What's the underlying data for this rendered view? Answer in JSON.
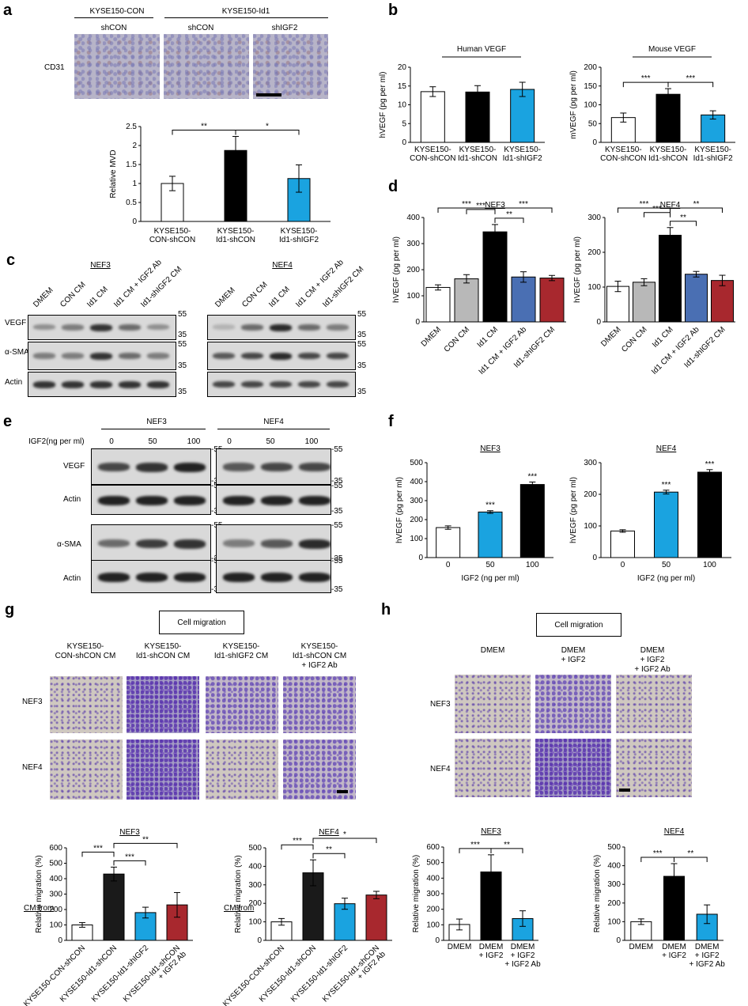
{
  "panels": {
    "a": {
      "letter": "a",
      "group1": "KYSE150-CON",
      "group2": "KYSE150-Id1",
      "sub": [
        "shCON",
        "shCON",
        "shIGF2"
      ],
      "row_label": "CD31"
    },
    "b": {
      "letter": "b",
      "title1": "Human VEGF",
      "title2": "Mouse VEGF"
    },
    "c": {
      "letter": "c",
      "title1": "NEF3",
      "title2": "NEF4",
      "lanes": [
        "DMEM",
        "CON CM",
        "Id1 CM",
        "Id1 CM + IGF2 Ab",
        "Id1-shIGF2 CM"
      ],
      "rows": [
        "VEGF",
        "α-SMA",
        "Actin"
      ],
      "markers": [
        "55",
        "35",
        "55",
        "35",
        "35"
      ]
    },
    "d": {
      "letter": "d"
    },
    "e": {
      "letter": "e",
      "title1": "NEF3",
      "title2": "NEF4",
      "dose_label": "IGF2(ng per ml)",
      "doses": [
        "0",
        "50",
        "100"
      ],
      "rows": [
        "VEGF",
        "Actin",
        "α-SMA",
        "Actin"
      ],
      "markers": [
        "55",
        "35"
      ]
    },
    "f": {
      "letter": "f"
    },
    "g": {
      "letter": "g",
      "box": "Cell migration",
      "cols": [
        "KYSE150-\nCON-shCON CM",
        "KYSE150-\nId1-shCON CM",
        "KYSE150-\nId1-shIGF2 CM",
        "KYSE150-\nId1-shCON CM\n+ IGF2 Ab"
      ],
      "rows": [
        "NEF3",
        "NEF4"
      ],
      "cm_from": "CM from"
    },
    "h": {
      "letter": "h",
      "box": "Cell migration",
      "cols": [
        "DMEM",
        "DMEM\n+ IGF2",
        "DMEM\n+ IGF2\n+ IGF2 Ab"
      ],
      "rows": [
        "NEF3",
        "NEF4"
      ]
    }
  },
  "chart_data": [
    {
      "id": "a_mvd",
      "type": "bar",
      "title": "",
      "ylabel": "Relative MVD",
      "categories": [
        "KYSE150-\nCON-shCON",
        "KYSE150-\nId1-shCON",
        "KYSE150-\nId1-shIGF2"
      ],
      "values": [
        1.0,
        1.87,
        1.13
      ],
      "errors": [
        0.19,
        0.37,
        0.36
      ],
      "colors": [
        "#ffffff",
        "#000000",
        "#1aa3e0"
      ],
      "ylim": [
        0,
        2.5
      ],
      "yticks": [
        "0",
        "0.5",
        "1",
        "1.5",
        "2",
        "2.5"
      ],
      "sig": [
        {
          "from": 0,
          "to": 1,
          "label": "**",
          "level": 1
        },
        {
          "from": 1,
          "to": 2,
          "label": "*",
          "level": 1
        }
      ],
      "rotate_labels": false
    },
    {
      "id": "b_human",
      "type": "bar",
      "title": "Human VEGF",
      "ylabel": "hVEGF (pg per ml)",
      "categories": [
        "KYSE150-\nCON-shCON",
        "KYSE150-\nId1-shCON",
        "KYSE150-\nId1-shIGF2"
      ],
      "values": [
        13.5,
        13.4,
        14.1
      ],
      "errors": [
        1.3,
        1.7,
        1.9
      ],
      "colors": [
        "#ffffff",
        "#000000",
        "#1aa3e0"
      ],
      "ylim": [
        0,
        20
      ],
      "yticks": [
        "0",
        "5",
        "10",
        "15",
        "20"
      ],
      "sig": [],
      "rotate_labels": false
    },
    {
      "id": "b_mouse",
      "type": "bar",
      "title": "Mouse VEGF",
      "ylabel": "mVEGF (pg per ml)",
      "categories": [
        "KYSE150-\nCON-shCON",
        "KYSE150-\nId1-shCON",
        "KYSE150-\nId1-shIGF2"
      ],
      "values": [
        66,
        128,
        73
      ],
      "errors": [
        12,
        15,
        11
      ],
      "colors": [
        "#ffffff",
        "#000000",
        "#1aa3e0"
      ],
      "ylim": [
        0,
        200
      ],
      "yticks": [
        "0",
        "50",
        "100",
        "150",
        "200"
      ],
      "sig": [
        {
          "from": 0,
          "to": 1,
          "label": "***",
          "level": 1
        },
        {
          "from": 1,
          "to": 2,
          "label": "***",
          "level": 1
        }
      ],
      "rotate_labels": false
    },
    {
      "id": "d_nef3",
      "type": "bar",
      "title": "NEF3",
      "ylabel": "hVEGF (pg per ml)",
      "categories": [
        "DMEM",
        "CON CM",
        "Id1 CM",
        "Id1 CM + IGF2 Ab",
        "Id1-shIGF2 CM"
      ],
      "values": [
        132,
        165,
        345,
        172,
        168
      ],
      "errors": [
        10,
        16,
        28,
        20,
        10
      ],
      "colors": [
        "#ffffff",
        "#b8b8b8",
        "#000000",
        "#4a6fb3",
        "#a8282e"
      ],
      "ylim": [
        0,
        400
      ],
      "yticks": [
        "0",
        "100",
        "200",
        "300",
        "400"
      ],
      "sig": [
        {
          "from": 0,
          "to": 2,
          "label": "***",
          "level": 3
        },
        {
          "from": 1,
          "to": 2,
          "label": "***",
          "level": 2
        },
        {
          "from": 2,
          "to": 4,
          "label": "***",
          "level": 3
        },
        {
          "from": 2,
          "to": 3,
          "label": "**",
          "level": 1
        }
      ],
      "rotate_labels": true
    },
    {
      "id": "d_nef4",
      "type": "bar",
      "title": "NEF4",
      "ylabel": "hVEGF (pg per ml)",
      "categories": [
        "DMEM",
        "CON CM",
        "Id1 CM",
        "Id1 CM + IGF2 Ab",
        "Id1-shIGF2 CM"
      ],
      "values": [
        102,
        114,
        249,
        137,
        119
      ],
      "errors": [
        15,
        10,
        22,
        8,
        15
      ],
      "colors": [
        "#ffffff",
        "#b8b8b8",
        "#000000",
        "#4a6fb3",
        "#a8282e"
      ],
      "ylim": [
        0,
        300
      ],
      "yticks": [
        "0",
        "100",
        "200",
        "300"
      ],
      "sig": [
        {
          "from": 0,
          "to": 2,
          "label": "***",
          "level": 3
        },
        {
          "from": 1,
          "to": 2,
          "label": "***",
          "level": 2
        },
        {
          "from": 2,
          "to": 4,
          "label": "**",
          "level": 3
        },
        {
          "from": 2,
          "to": 3,
          "label": "**",
          "level": 1
        }
      ],
      "rotate_labels": true
    },
    {
      "id": "f_nef3",
      "type": "bar",
      "title": "NEF3",
      "ylabel": "hVEGF (pg per ml)",
      "xlabel": "IGF2 (ng per ml)",
      "categories": [
        "0",
        "50",
        "100"
      ],
      "values": [
        158,
        240,
        385
      ],
      "errors": [
        9,
        7,
        13
      ],
      "colors": [
        "#ffffff",
        "#1aa3e0",
        "#000000"
      ],
      "ylim": [
        0,
        500
      ],
      "yticks": [
        "0",
        "100",
        "200",
        "300",
        "400",
        "500"
      ],
      "stars": [
        "",
        "***",
        "***"
      ],
      "sig": [],
      "rotate_labels": false
    },
    {
      "id": "f_nef4",
      "type": "bar",
      "title": "NEF4",
      "ylabel": "hVEGF (pg per ml)",
      "xlabel": "IGF2 (ng per ml)",
      "categories": [
        "0",
        "50",
        "100"
      ],
      "values": [
        84,
        207,
        270
      ],
      "errors": [
        4,
        6,
        8
      ],
      "colors": [
        "#ffffff",
        "#1aa3e0",
        "#000000"
      ],
      "ylim": [
        0,
        300
      ],
      "yticks": [
        "0",
        "100",
        "200",
        "300"
      ],
      "stars": [
        "",
        "***",
        "***"
      ],
      "sig": [],
      "rotate_labels": false
    },
    {
      "id": "g_nef3",
      "type": "bar",
      "title": "NEF3",
      "ylabel": "Relative migration (%)",
      "categories": [
        "KYSE150-CON-shCON",
        "KYSE150-Id1-shCON",
        "KYSE150-Id1-shIGF2",
        "KYSE150-Id1-shCON\n+ IGF2 Ab"
      ],
      "values": [
        100,
        430,
        180,
        230
      ],
      "errors": [
        15,
        45,
        35,
        80
      ],
      "colors": [
        "#ffffff",
        "#1a1a1a",
        "#1aa3e0",
        "#a8282e"
      ],
      "ylim": [
        0,
        600
      ],
      "yticks": [
        "0",
        "100",
        "200",
        "300",
        "400",
        "500",
        "600"
      ],
      "sig": [
        {
          "from": 0,
          "to": 1,
          "label": "***",
          "level": 2
        },
        {
          "from": 1,
          "to": 2,
          "label": "***",
          "level": 1
        },
        {
          "from": 1,
          "to": 3,
          "label": "**",
          "level": 3
        }
      ],
      "rotate_labels": true
    },
    {
      "id": "g_nef4",
      "type": "bar",
      "title": "NEF4",
      "ylabel": "Relative migration (%)",
      "categories": [
        "KYSE150-CON-shCON",
        "KYSE150-Id1-shCON",
        "KYSE150-Id1-shIGF2",
        "KYSE150-Id1-shCON\n+ IGF2 Ab"
      ],
      "values": [
        100,
        365,
        198,
        245
      ],
      "errors": [
        18,
        70,
        30,
        20
      ],
      "colors": [
        "#ffffff",
        "#1a1a1a",
        "#1aa3e0",
        "#a8282e"
      ],
      "ylim": [
        0,
        500
      ],
      "yticks": [
        "0",
        "100",
        "200",
        "300",
        "400",
        "500"
      ],
      "sig": [
        {
          "from": 0,
          "to": 1,
          "label": "***",
          "level": 2
        },
        {
          "from": 1,
          "to": 2,
          "label": "**",
          "level": 1
        },
        {
          "from": 1,
          "to": 3,
          "label": "*",
          "level": 3
        }
      ],
      "rotate_labels": true
    },
    {
      "id": "h_nef3",
      "type": "bar",
      "title": "NEF3",
      "ylabel": "Relative migration (%)",
      "categories": [
        "DMEM",
        "DMEM\n+ IGF2",
        "DMEM\n+ IGF2\n+ IGF2 Ab"
      ],
      "values": [
        102,
        440,
        140
      ],
      "errors": [
        35,
        110,
        50
      ],
      "colors": [
        "#ffffff",
        "#000000",
        "#1aa3e0"
      ],
      "ylim": [
        0,
        600
      ],
      "yticks": [
        "0",
        "100",
        "200",
        "300",
        "400",
        "500",
        "600"
      ],
      "sig": [
        {
          "from": 0,
          "to": 1,
          "label": "***",
          "level": 1
        },
        {
          "from": 1,
          "to": 2,
          "label": "**",
          "level": 1
        }
      ],
      "rotate_labels": false
    },
    {
      "id": "h_nef4",
      "type": "bar",
      "title": "NEF4",
      "ylabel": "Relative migration (%)",
      "categories": [
        "DMEM",
        "DMEM\n+ IGF2",
        "DMEM\n+ IGF2\n+ IGF2 Ab"
      ],
      "values": [
        100,
        343,
        140
      ],
      "errors": [
        15,
        68,
        50
      ],
      "colors": [
        "#ffffff",
        "#000000",
        "#1aa3e0"
      ],
      "ylim": [
        0,
        500
      ],
      "yticks": [
        "0",
        "100",
        "200",
        "300",
        "400",
        "500"
      ],
      "sig": [
        {
          "from": 0,
          "to": 1,
          "label": "***",
          "level": 1
        },
        {
          "from": 1,
          "to": 2,
          "label": "**",
          "level": 1
        }
      ],
      "rotate_labels": false
    }
  ]
}
